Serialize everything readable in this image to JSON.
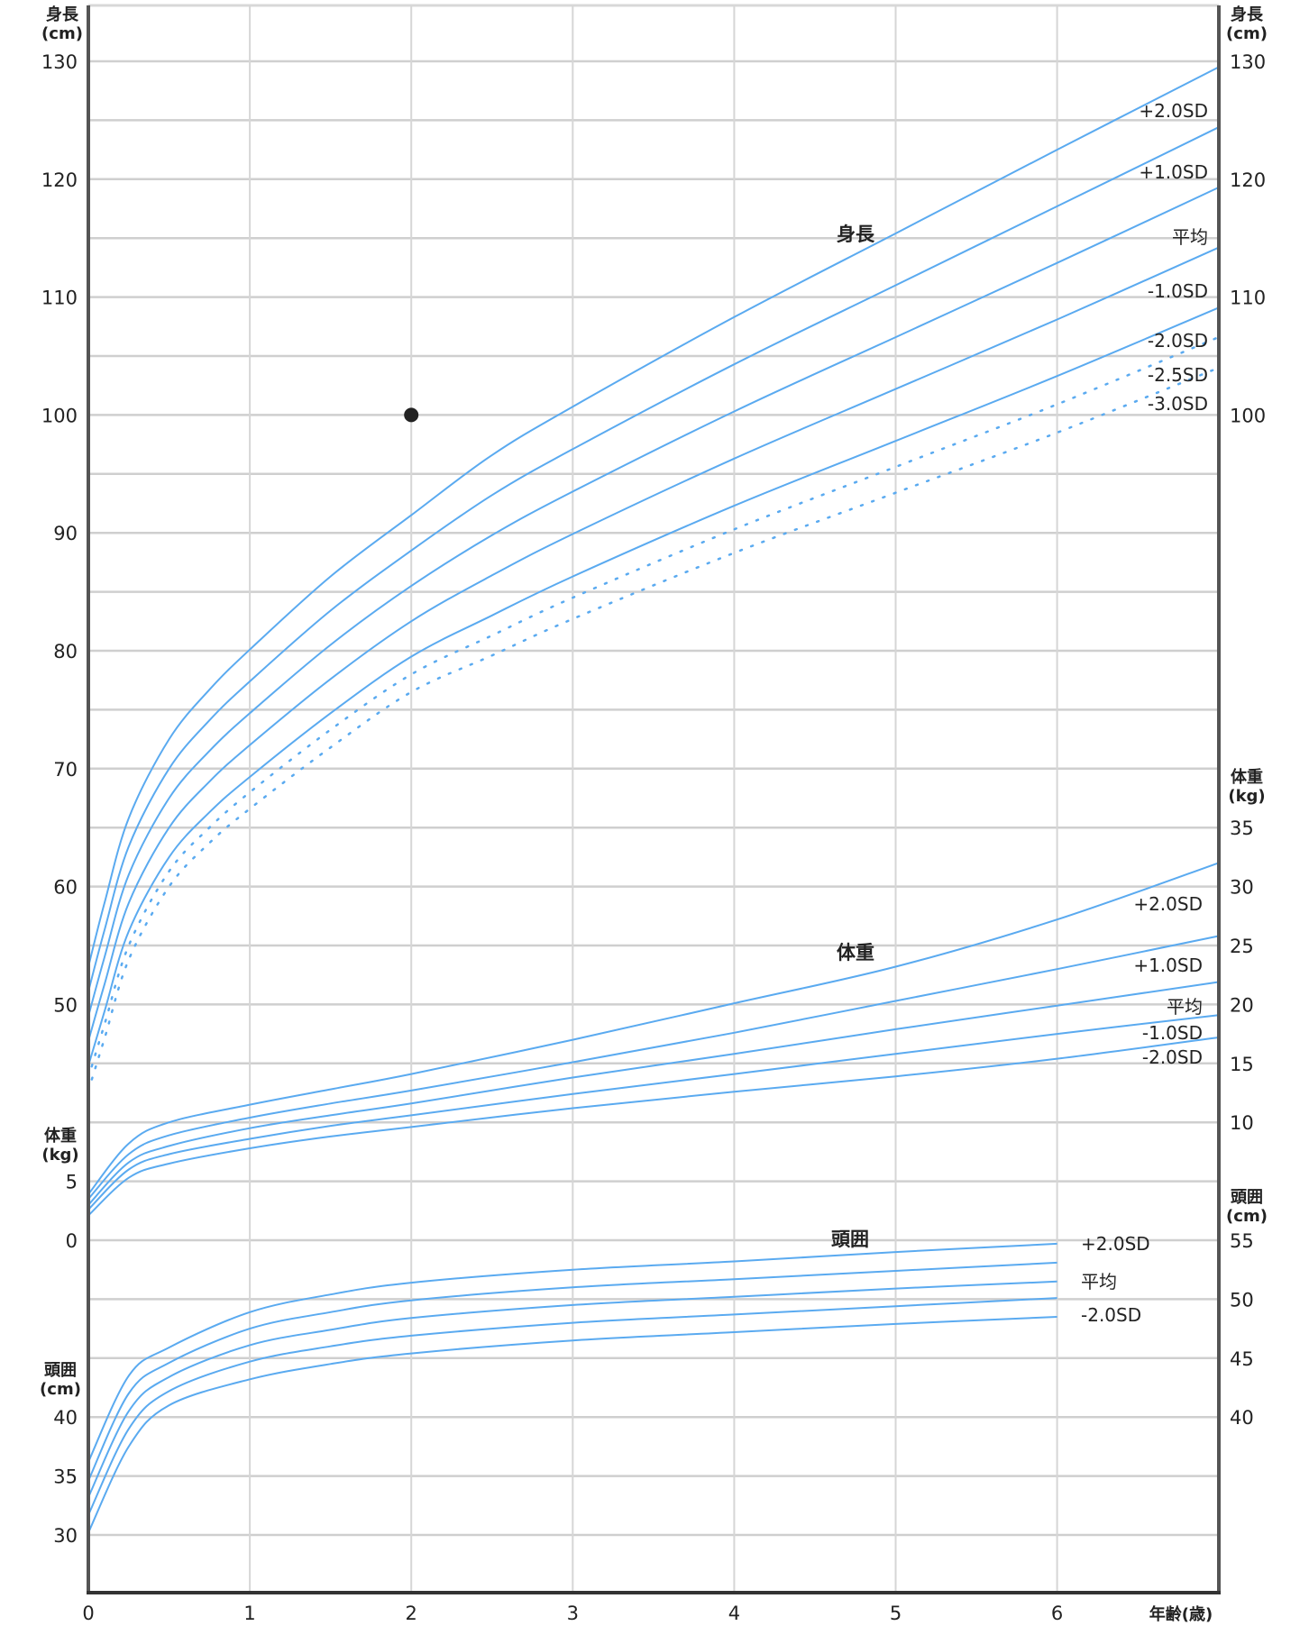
{
  "chart_data": {
    "type": "line",
    "xlabel": "年齢(歳)",
    "xlim": [
      0,
      7
    ],
    "x_ticks": [
      "0",
      "1",
      "2",
      "3",
      "4",
      "5",
      "6"
    ],
    "grid": true,
    "line_color": "#5aaaf0",
    "panels": {
      "height": {
        "title": "身長",
        "unit_label": [
          "身長",
          "(cm)"
        ],
        "left_ticks": [
          130,
          120,
          110,
          100,
          90,
          80,
          70,
          60,
          50
        ],
        "right_ticks": [
          130,
          120,
          110,
          100
        ],
        "ages": [
          0,
          0.1,
          0.25,
          0.5,
          0.75,
          1,
          1.5,
          2,
          2.5,
          3,
          4,
          5,
          6,
          7
        ],
        "series": [
          {
            "name": "+2.0SD",
            "style": "solid",
            "values": [
              53.2,
              58.6,
              65.8,
              72.5,
              76.7,
              80.1,
              86.3,
              91.5,
              96.6,
              100.7,
              108.3,
              115.4,
              122.5,
              129.5
            ]
          },
          {
            "name": "+1.0SD",
            "style": "solid",
            "values": [
              51.1,
              56.3,
              63.4,
              70.0,
              74.1,
              77.4,
              83.4,
              88.5,
              93.2,
              97.1,
              104.3,
              111.0,
              117.7,
              124.4
            ]
          },
          {
            "name": "平均",
            "style": "solid",
            "values": [
              49.0,
              54.0,
              61.0,
              67.5,
              71.5,
              74.7,
              80.5,
              85.5,
              89.8,
              93.5,
              100.3,
              106.6,
              112.9,
              119.3
            ]
          },
          {
            "name": "-1.0SD",
            "style": "solid",
            "values": [
              46.9,
              51.7,
              58.6,
              65.0,
              68.9,
              72.0,
              77.6,
              82.5,
              86.4,
              89.9,
              96.3,
              102.2,
              108.1,
              114.2
            ]
          },
          {
            "name": "-2.0SD",
            "style": "solid",
            "values": [
              44.8,
              49.4,
              56.2,
              62.5,
              66.3,
              69.3,
              74.7,
              79.5,
              83.0,
              86.3,
              92.3,
              97.8,
              103.3,
              109.1
            ]
          },
          {
            "name": "-2.5SD",
            "style": "dotted",
            "values": [
              43.8,
              48.3,
              55.0,
              61.3,
              65.0,
              68.0,
              73.3,
              78.0,
              81.3,
              84.5,
              90.3,
              95.6,
              100.9,
              106.6
            ]
          },
          {
            "name": "-3.0SD",
            "style": "dotted",
            "values": [
              42.7,
              47.1,
              53.8,
              60.0,
              63.7,
              66.6,
              71.8,
              76.5,
              79.6,
              82.7,
              88.3,
              93.4,
              98.5,
              104.0
            ]
          }
        ],
        "points": [
          {
            "age": 2,
            "value": 100
          }
        ]
      },
      "weight": {
        "title": "体重",
        "unit_label": [
          "体重",
          "(kg)"
        ],
        "left_ticks": [
          5,
          0
        ],
        "right_ticks": [
          35,
          30,
          25,
          20,
          15,
          10
        ],
        "ages": [
          0,
          0.25,
          0.5,
          1,
          1.5,
          2,
          3,
          4,
          5,
          6,
          7
        ],
        "series": [
          {
            "name": "+2.0SD",
            "style": "solid",
            "values": [
              3.9,
              8.2,
              10.0,
              11.5,
              12.8,
              14.1,
              17.0,
              20.1,
              23.2,
              27.2,
              32.0
            ]
          },
          {
            "name": "+1.0SD",
            "style": "solid",
            "values": [
              3.5,
              7.3,
              8.9,
              10.4,
              11.6,
              12.7,
              15.1,
              17.6,
              20.3,
              23.0,
              25.8
            ]
          },
          {
            "name": "平均",
            "style": "solid",
            "values": [
              3.0,
              6.6,
              8.0,
              9.5,
              10.6,
              11.6,
              13.8,
              15.8,
              17.9,
              19.9,
              21.9
            ]
          },
          {
            "name": "-1.0SD",
            "style": "solid",
            "values": [
              2.6,
              6.0,
              7.3,
              8.6,
              9.7,
              10.6,
              12.4,
              14.1,
              15.8,
              17.5,
              19.1
            ]
          },
          {
            "name": "-2.0SD",
            "style": "solid",
            "values": [
              2.1,
              5.3,
              6.5,
              7.8,
              8.8,
              9.6,
              11.2,
              12.6,
              13.9,
              15.4,
              17.2
            ]
          }
        ]
      },
      "head": {
        "title": "頭囲",
        "unit_label": [
          "頭囲",
          "(cm)"
        ],
        "left_ticks": [
          40,
          35,
          30
        ],
        "right_ticks": [
          55,
          50,
          45,
          40
        ],
        "ages": [
          0,
          0.25,
          0.5,
          1,
          1.5,
          2,
          3,
          4,
          5,
          6
        ],
        "series": [
          {
            "name": "+2.0SD",
            "labelled": true,
            "values": [
              36.2,
              43.5,
              45.9,
              48.9,
              50.4,
              51.4,
              52.5,
              53.2,
              54.0,
              54.7
            ]
          },
          {
            "name": "+1.0SD",
            "labelled": false,
            "values": [
              34.6,
              42.0,
              44.6,
              47.5,
              48.9,
              49.9,
              51.0,
              51.7,
              52.4,
              53.1
            ]
          },
          {
            "name": "平均",
            "labelled": true,
            "values": [
              33.2,
              40.5,
              43.4,
              46.1,
              47.4,
              48.4,
              49.5,
              50.2,
              50.9,
              51.5
            ]
          },
          {
            "name": "-1.0SD",
            "labelled": false,
            "values": [
              31.7,
              39.0,
              42.2,
              44.7,
              46.0,
              46.9,
              48.0,
              48.7,
              49.4,
              50.1
            ]
          },
          {
            "name": "-2.0SD",
            "labelled": true,
            "values": [
              30.2,
              37.5,
              41.0,
              43.2,
              44.5,
              45.4,
              46.5,
              47.2,
              47.9,
              48.5
            ]
          }
        ]
      }
    }
  }
}
